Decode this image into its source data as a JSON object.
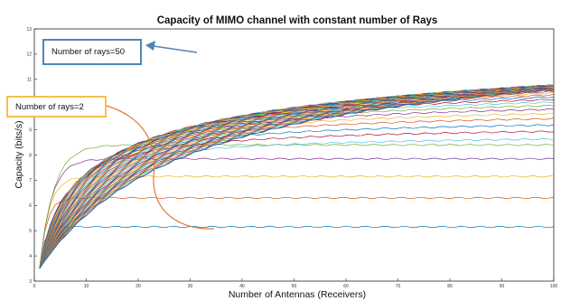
{
  "colors": {
    "background": "#ffffff",
    "axis": "#262626",
    "grid": "#ececec",
    "callout_50": "#4f86b8",
    "callout_2_border": "#f2c14e",
    "callout_2_arc": "#e07b39",
    "series_palette": [
      "#0072bd",
      "#d95319",
      "#edb120",
      "#7e2f8e",
      "#77ac30",
      "#4dbeee",
      "#a2142f"
    ]
  },
  "annotations": {
    "rays_50": "Number of rays=50",
    "rays_2": "Number of rays=2"
  },
  "chart_data": {
    "type": "line",
    "title": "Capacity of MIMO channel with constant number of Rays",
    "xlabel": "Number of Antennas (Receivers)",
    "ylabel": "Capacity (bits/s)",
    "xlim": [
      0,
      100
    ],
    "ylim": [
      3,
      13
    ],
    "x_ticks": [
      0,
      10,
      20,
      30,
      40,
      50,
      60,
      70,
      80,
      90,
      100
    ],
    "y_ticks": [
      3,
      4,
      5,
      6,
      7,
      8,
      9,
      10,
      11,
      12,
      13
    ],
    "x_range": [
      1,
      100
    ],
    "grid": false,
    "legend": "none",
    "series_count": 50,
    "series_rays": [
      2,
      3,
      4,
      5,
      6,
      7,
      8,
      9,
      10,
      11,
      12,
      13,
      14,
      15,
      16,
      17,
      18,
      19,
      20,
      21,
      22,
      23,
      24,
      25,
      26,
      27,
      28,
      29,
      30,
      31,
      32,
      33,
      34,
      35,
      36,
      37,
      38,
      39,
      40,
      41,
      42,
      43,
      44,
      45,
      46,
      47,
      48,
      49,
      50,
      51
    ],
    "series_start": 3.5,
    "series_plateaus": [
      5.15,
      6.3,
      7.15,
      7.85,
      8.4,
      8.85,
      9.2,
      9.5,
      9.8,
      10.05,
      10.27,
      10.47,
      10.65,
      10.81,
      10.96,
      11.09,
      11.21,
      11.32,
      11.42,
      11.51,
      11.59,
      11.67,
      11.74,
      11.81,
      11.87,
      11.93,
      11.99,
      12.04,
      12.09,
      12.13,
      12.18,
      12.22,
      12.26,
      12.3,
      12.33,
      12.37,
      12.4,
      12.43,
      12.46,
      12.49,
      12.52,
      12.55,
      12.57,
      12.6,
      12.62,
      12.65,
      12.67,
      12.7,
      12.72,
      12.82
    ]
  }
}
